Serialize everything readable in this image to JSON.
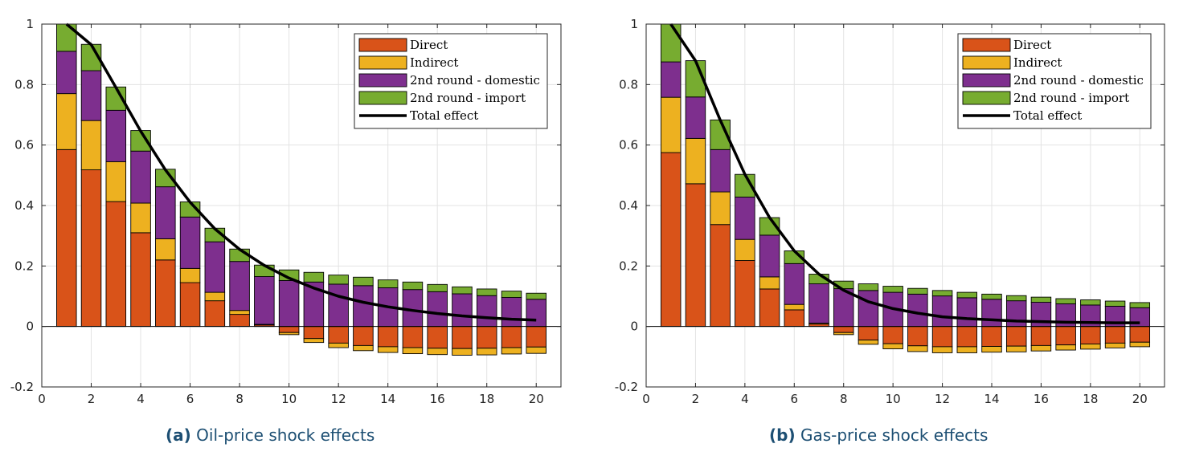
{
  "captions": [
    {
      "label": "(a)",
      "text": "Oil-price shock effects"
    },
    {
      "label": "(b)",
      "text": "Gas-price shock effects"
    }
  ],
  "colors": {
    "direct": "#d95319",
    "indirect": "#edb120",
    "domestic": "#7e2f8e",
    "import": "#77ac30",
    "total": "#000000"
  },
  "chart_data": [
    {
      "type": "bar",
      "title": "Oil-price shock effects",
      "xlabel": "",
      "ylabel": "",
      "xlim": [
        0,
        21
      ],
      "ylim": [
        -0.2,
        1
      ],
      "xticks": [
        0,
        2,
        4,
        6,
        8,
        10,
        12,
        14,
        16,
        18,
        20
      ],
      "yticks": [
        -0.2,
        0,
        0.2,
        0.4,
        0.6,
        0.8,
        1
      ],
      "ytick_labels": [
        "-0.2",
        "0",
        "0.2",
        "0.4",
        "0.6",
        "0.8",
        "1"
      ],
      "grid": true,
      "legend_position": "top-right",
      "x": [
        1,
        2,
        3,
        4,
        5,
        6,
        7,
        8,
        9,
        10,
        11,
        12,
        13,
        14,
        15,
        16,
        17,
        18,
        19,
        20
      ],
      "series": [
        {
          "name": "Direct",
          "key": "direct",
          "values": [
            0.585,
            0.518,
            0.413,
            0.31,
            0.22,
            0.145,
            0.085,
            0.04,
            0.005,
            -0.02,
            -0.04,
            -0.055,
            -0.063,
            -0.067,
            -0.07,
            -0.072,
            -0.073,
            -0.072,
            -0.07,
            -0.068
          ]
        },
        {
          "name": "Indirect",
          "key": "indirect",
          "values": [
            0.185,
            0.163,
            0.132,
            0.098,
            0.07,
            0.047,
            0.028,
            0.013,
            0.002,
            -0.007,
            -0.013,
            -0.015,
            -0.017,
            -0.019,
            -0.02,
            -0.021,
            -0.022,
            -0.022,
            -0.021,
            -0.021
          ]
        },
        {
          "name": "2nd round - domestic",
          "key": "domestic",
          "values": [
            0.14,
            0.165,
            0.17,
            0.172,
            0.172,
            0.17,
            0.167,
            0.162,
            0.158,
            0.152,
            0.147,
            0.14,
            0.135,
            0.128,
            0.122,
            0.115,
            0.108,
            0.102,
            0.096,
            0.09
          ]
        },
        {
          "name": "2nd round - import",
          "key": "import",
          "values": [
            0.09,
            0.087,
            0.077,
            0.068,
            0.058,
            0.05,
            0.045,
            0.041,
            0.038,
            0.035,
            0.032,
            0.03,
            0.028,
            0.026,
            0.025,
            0.024,
            0.023,
            0.022,
            0.021,
            0.02
          ]
        },
        {
          "name": "Total effect",
          "key": "total",
          "kind": "line",
          "values": [
            1.0,
            0.932,
            0.79,
            0.646,
            0.518,
            0.411,
            0.323,
            0.255,
            0.202,
            0.16,
            0.127,
            0.1,
            0.08,
            0.065,
            0.053,
            0.043,
            0.035,
            0.029,
            0.024,
            0.021
          ]
        }
      ]
    },
    {
      "type": "bar",
      "title": "Gas-price shock effects",
      "xlabel": "",
      "ylabel": "",
      "xlim": [
        0,
        21
      ],
      "ylim": [
        -0.2,
        1
      ],
      "xticks": [
        0,
        2,
        4,
        6,
        8,
        10,
        12,
        14,
        16,
        18,
        20
      ],
      "yticks": [
        -0.2,
        0,
        0.2,
        0.4,
        0.6,
        0.8,
        1
      ],
      "ytick_labels": [
        "-0.2",
        "0",
        "0.2",
        "0.4",
        "0.6",
        "0.8",
        "1"
      ],
      "grid": true,
      "legend_position": "top-right",
      "x": [
        1,
        2,
        3,
        4,
        5,
        6,
        7,
        8,
        9,
        10,
        11,
        12,
        13,
        14,
        15,
        16,
        17,
        18,
        19,
        20
      ],
      "series": [
        {
          "name": "Direct",
          "key": "direct",
          "values": [
            0.575,
            0.472,
            0.337,
            0.218,
            0.124,
            0.055,
            0.008,
            -0.02,
            -0.045,
            -0.057,
            -0.064,
            -0.067,
            -0.067,
            -0.066,
            -0.065,
            -0.063,
            -0.061,
            -0.058,
            -0.055,
            -0.052
          ]
        },
        {
          "name": "Indirect",
          "key": "indirect",
          "values": [
            0.183,
            0.15,
            0.108,
            0.07,
            0.04,
            0.018,
            0.003,
            -0.007,
            -0.014,
            -0.017,
            -0.019,
            -0.02,
            -0.02,
            -0.019,
            -0.019,
            -0.018,
            -0.017,
            -0.017,
            -0.016,
            -0.015
          ]
        },
        {
          "name": "2nd round - domestic",
          "key": "domestic",
          "values": [
            0.117,
            0.137,
            0.14,
            0.14,
            0.138,
            0.135,
            0.13,
            0.125,
            0.119,
            0.113,
            0.107,
            0.101,
            0.095,
            0.09,
            0.085,
            0.08,
            0.075,
            0.071,
            0.067,
            0.062
          ]
        },
        {
          "name": "2nd round - import",
          "key": "import",
          "values": [
            0.125,
            0.12,
            0.098,
            0.075,
            0.058,
            0.042,
            0.032,
            0.025,
            0.022,
            0.02,
            0.019,
            0.018,
            0.018,
            0.017,
            0.017,
            0.017,
            0.017,
            0.017,
            0.017,
            0.017
          ]
        },
        {
          "name": "Total effect",
          "key": "total",
          "kind": "line",
          "values": [
            1.0,
            0.879,
            0.683,
            0.503,
            0.36,
            0.25,
            0.173,
            0.12,
            0.082,
            0.059,
            0.044,
            0.032,
            0.026,
            0.022,
            0.018,
            0.016,
            0.014,
            0.013,
            0.012,
            0.012
          ]
        }
      ]
    }
  ]
}
